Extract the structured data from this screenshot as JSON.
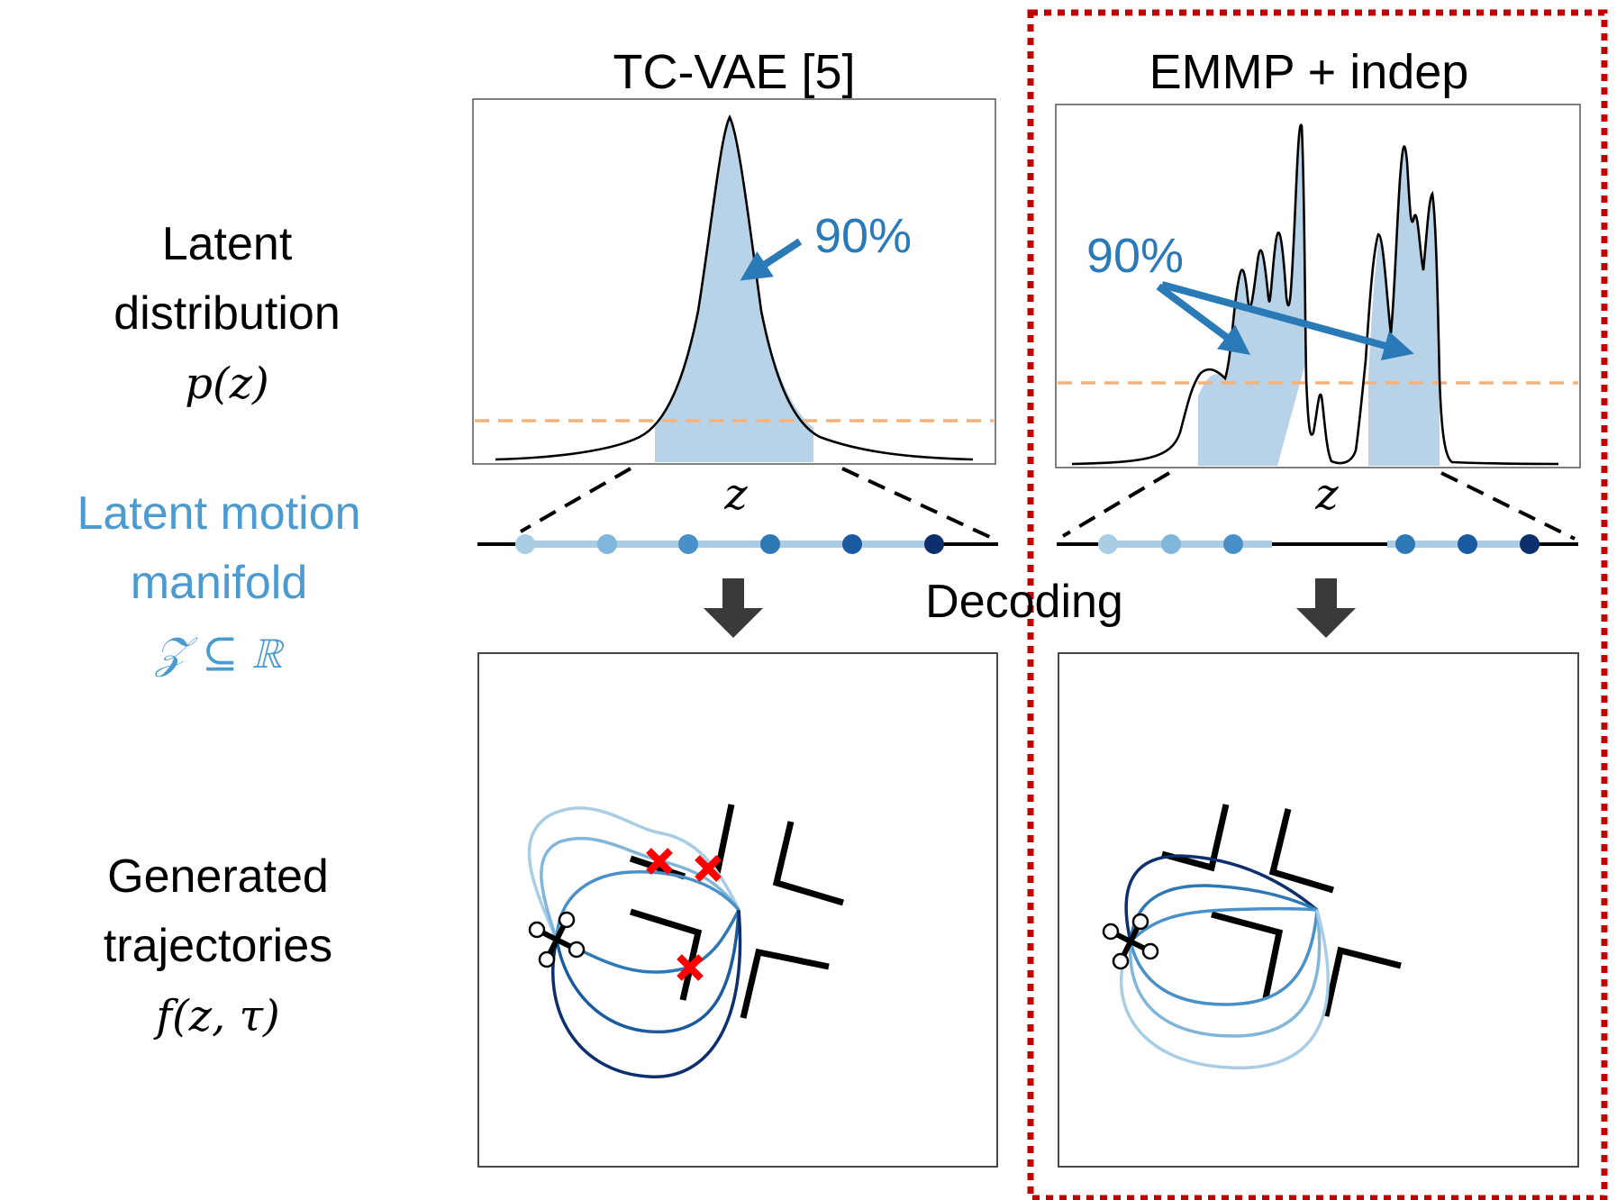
{
  "row_labels": {
    "latent_distribution": [
      "Latent",
      "distribution"
    ],
    "latent_distribution_math": "p(z)",
    "latent_manifold": [
      "Latent motion",
      "manifold"
    ],
    "latent_manifold_math": "𝒵 ⊆ ℝ",
    "generated": [
      "Generated",
      "trajectories"
    ],
    "generated_math": "f(z, τ)"
  },
  "columns": [
    {
      "title": "TC-VAE [5]",
      "percent_label": "90%",
      "axis_label": "z"
    },
    {
      "title": "EMMP + indep",
      "percent_label": "90%",
      "axis_label": "z"
    }
  ],
  "decoding_label": "Decoding",
  "colors": {
    "fill": "#b8d3e8",
    "threshold": "#f5b27a",
    "arrow_blue": "#2a7ab8",
    "highlight_box": "#c00000",
    "traj_light": "#a9cde4",
    "traj_mid": "#4a90c8",
    "traj_dark": "#0d2f6e",
    "collision": "#ff0000"
  },
  "manifold_dots": {
    "left": [
      "#a9cde4",
      "#7fb6da",
      "#4a90c8",
      "#2f78b6",
      "#1a5aa0",
      "#0d2f6e"
    ],
    "right": [
      "#a9cde4",
      "#7fb6da",
      "#4a90c8",
      "#2f78b6",
      "#1a5aa0",
      "#0d2f6e"
    ]
  },
  "chart_data": [
    {
      "type": "area",
      "title": "TC-VAE [5]",
      "xlabel": "z",
      "ylabel": "",
      "series": [
        {
          "shape": "single peak",
          "shaded_mass_percent": 90
        }
      ],
      "threshold_line": "dashed"
    },
    {
      "type": "area",
      "title": "EMMP + indep",
      "xlabel": "z",
      "ylabel": "",
      "series": [
        {
          "shape": "two multi-peak clusters",
          "shaded_mass_percent": 90
        }
      ],
      "threshold_line": "dashed"
    }
  ]
}
